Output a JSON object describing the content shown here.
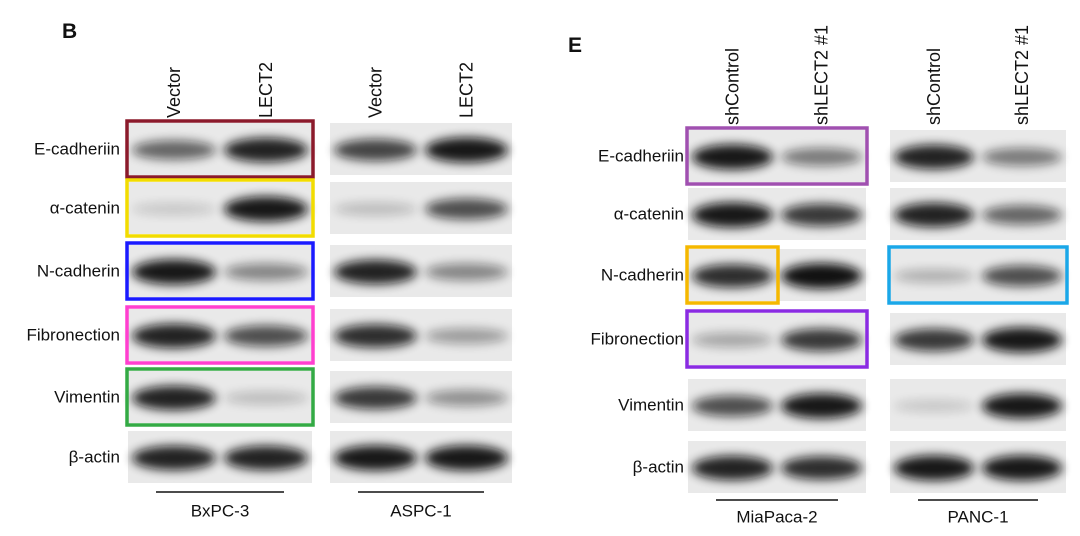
{
  "panels": [
    {
      "letter": "B",
      "rows": [
        "E-cadheriin",
        "α-catenin",
        "N-cadherin",
        "Fibronection",
        "Vimentin",
        "β-actin"
      ],
      "groups": [
        {
          "name": "BxPC-3",
          "lanes": [
            "Vector",
            "LECT2"
          ]
        },
        {
          "name": "ASPC-1",
          "lanes": [
            "Vector",
            "LECT2"
          ]
        }
      ]
    },
    {
      "letter": "E",
      "rows": [
        "E-cadheriin",
        "α-catenin",
        "N-cadherin",
        "Fibronection",
        "Vimentin",
        "β-actin"
      ],
      "groups": [
        {
          "name": "MiaPaca-2",
          "lanes": [
            "shControl",
            "shLECT2 #1"
          ]
        },
        {
          "name": "PANC-1",
          "lanes": [
            "shControl",
            "shLECT2 #1"
          ]
        }
      ]
    }
  ]
}
